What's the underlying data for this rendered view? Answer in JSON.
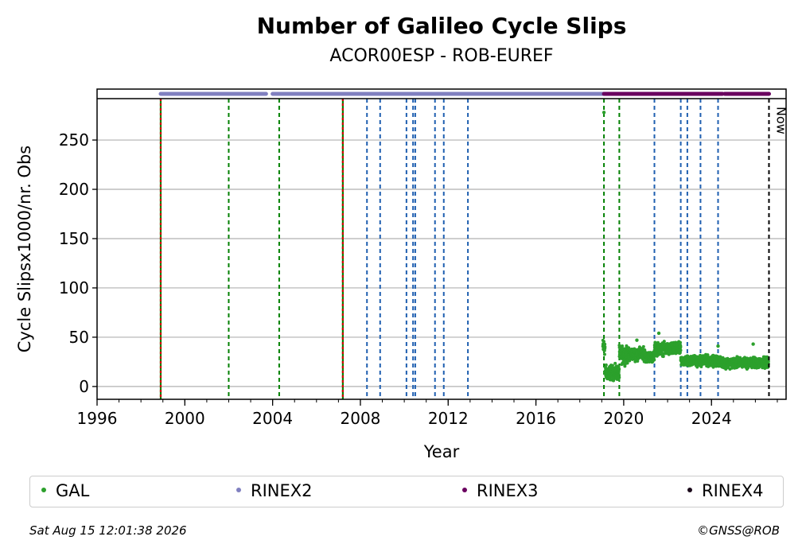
{
  "chart_data": {
    "type": "scatter",
    "title": "Number of Galileo Cycle Slips",
    "subtitle": "ACOR00ESP - ROB-EUREF",
    "xlabel": "Year",
    "ylabel": "Cycle Slipsx1000/nr. Obs",
    "xlim": [
      1996,
      2027.4
    ],
    "ylim": [
      -13,
      292
    ],
    "x_ticks": [
      1996,
      2000,
      2004,
      2008,
      2012,
      2016,
      2020,
      2024
    ],
    "y_ticks": [
      0,
      50,
      100,
      150,
      200,
      250
    ],
    "grid": "y",
    "now_label": "Now",
    "now_x": 2026.62,
    "colors": {
      "GAL": "#2ca02c",
      "RINEX2": "#8080c0",
      "RINEX3": "#6a005f",
      "RINEX4": "#1a0a1a",
      "green_line": "#008000",
      "blue_line": "#1f5fb0",
      "red_line": "#d00000",
      "now_line": "#000000"
    },
    "legend": [
      {
        "name": "GAL",
        "color": "#2ca02c"
      },
      {
        "name": "RINEX2",
        "color": "#8080c0"
      },
      {
        "name": "RINEX3",
        "color": "#6a005f"
      },
      {
        "name": "RINEX4",
        "color": "#1a0a1a"
      }
    ],
    "rinex_bars": [
      {
        "format": "RINEX2",
        "ranges": [
          [
            1998.9,
            2003.7
          ],
          [
            2004.0,
            2019.1
          ]
        ]
      },
      {
        "format": "RINEX3",
        "ranges": [
          [
            2019.1,
            2024.5
          ],
          [
            2024.6,
            2026.62
          ]
        ]
      }
    ],
    "event_lines": {
      "red_green": [
        1998.9,
        2007.2
      ],
      "green": [
        2002.0,
        2004.3,
        2019.1,
        2019.8
      ],
      "blue": [
        2008.3,
        2008.9,
        2010.1,
        2010.4,
        2010.5,
        2011.4,
        2011.8,
        2012.9,
        2021.4,
        2022.6,
        2022.9,
        2023.5,
        2024.3
      ]
    },
    "series": [
      {
        "name": "GAL",
        "segments": [
          {
            "x_start": 2019.05,
            "x_end": 2019.15,
            "y_mean": 40,
            "y_spread": 8
          },
          {
            "x_start": 2019.15,
            "x_end": 2019.8,
            "y_mean": 14,
            "y_spread": 7
          },
          {
            "x_start": 2019.8,
            "x_end": 2020.2,
            "y_mean": 32,
            "y_spread": 8
          },
          {
            "x_start": 2020.2,
            "x_end": 2021.0,
            "y_mean": 33,
            "y_spread": 6
          },
          {
            "x_start": 2021.0,
            "x_end": 2021.4,
            "y_mean": 30,
            "y_spread": 5
          },
          {
            "x_start": 2021.4,
            "x_end": 2022.6,
            "y_mean": 38,
            "y_spread": 6
          },
          {
            "x_start": 2022.6,
            "x_end": 2024.4,
            "y_mean": 26,
            "y_spread": 5
          },
          {
            "x_start": 2024.4,
            "x_end": 2026.6,
            "y_mean": 24,
            "y_spread": 5
          }
        ],
        "outliers": [
          [
            2019.1,
            278
          ],
          [
            2021.6,
            54
          ],
          [
            2025.9,
            43
          ],
          [
            2024.3,
            41
          ],
          [
            2020.6,
            47
          ]
        ]
      }
    ]
  },
  "footer": {
    "timestamp": "Sat Aug 15 12:01:38 2026",
    "copyright": "©GNSS@ROB"
  }
}
